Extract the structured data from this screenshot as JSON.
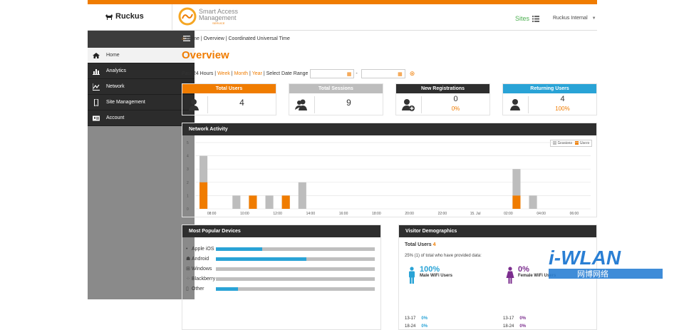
{
  "brand": {
    "ruckus": "Ruckus",
    "sam_line1": "Smart Access",
    "sam_line2": "Management",
    "sam_line3": "SERVICE"
  },
  "header": {
    "sites_label": "Sites",
    "user_label": "Ruckus Internal"
  },
  "sidebar": {
    "items": [
      {
        "label": "Home",
        "icon": "home-icon"
      },
      {
        "label": "Analytics",
        "icon": "bar-chart-icon"
      },
      {
        "label": "Network",
        "icon": "line-chart-icon"
      },
      {
        "label": "Site Management",
        "icon": "mobile-icon"
      },
      {
        "label": "Account",
        "icon": "id-card-icon"
      }
    ]
  },
  "breadcrumb": {
    "home": "Home",
    "overview": "Overview",
    "tz": "Coordinated Universal Time"
  },
  "page": {
    "title": "Overview"
  },
  "range": {
    "prefix": "Past 24 Hours",
    "week": "Week",
    "month": "Month",
    "year": "Year",
    "custom": "Select Date Range",
    "dash": "-"
  },
  "stats": [
    {
      "label": "Total Users",
      "value": "4",
      "sub": "",
      "color": "#f07c00"
    },
    {
      "label": "Total Sessions",
      "value": "9",
      "sub": "",
      "color": "#bdbdbd"
    },
    {
      "label": "New Registrations",
      "value": "0",
      "sub": "0%",
      "color": "#2e2e2e"
    },
    {
      "label": "Returning Users",
      "value": "4",
      "sub": "100%",
      "color": "#29a3d6"
    }
  ],
  "network": {
    "title": "Network Activity",
    "legend": {
      "sessions": "Sessions",
      "users": "Users"
    }
  },
  "chart_data": {
    "type": "bar",
    "title": "Network Activity",
    "ylim": [
      0,
      5
    ],
    "y_ticks": [
      "0",
      "1",
      "2",
      "3",
      "4",
      "5"
    ],
    "x_tick_labels": [
      "08:00",
      "10:00",
      "12:00",
      "14:00",
      "16:00",
      "18:00",
      "20:00",
      "22:00",
      "15. Jul",
      "02:00",
      "04:00",
      "06:00"
    ],
    "series": [
      {
        "name": "Sessions",
        "color": "#bdbdbd",
        "values": [
          4,
          1,
          1,
          1,
          1,
          2,
          3,
          1
        ]
      },
      {
        "name": "Users",
        "color": "#f07c00",
        "values": [
          2,
          0,
          1,
          0,
          1,
          0,
          1,
          0
        ]
      }
    ],
    "bar_slots": [
      0,
      2,
      3,
      4,
      5,
      6,
      19,
      20
    ],
    "grid": true,
    "legend_position": "top-right"
  },
  "devices": {
    "title": "Most Popular Devices",
    "items": [
      {
        "label": "Apple iOS",
        "icon": "apple-icon",
        "fraction": 0.29
      },
      {
        "label": "Android",
        "icon": "android-icon",
        "fraction": 0.57
      },
      {
        "label": "Windows",
        "icon": "windows-icon",
        "fraction": 0
      },
      {
        "label": "Blackberry",
        "icon": "blackberry-icon",
        "fraction": 0
      },
      {
        "label": "Other",
        "icon": "phone-icon",
        "fraction": 0.14
      }
    ]
  },
  "visitors": {
    "title": "Visitor Demographics",
    "total_label": "Total Users",
    "total_value": "4",
    "note": "25% (1) of total who have provided data:",
    "male": {
      "pct": "100%",
      "label": "Male WiFi Users",
      "color": "#29a3d6"
    },
    "female": {
      "pct": "0%",
      "label": "Female WiFi Users",
      "color": "#7b2d8e"
    },
    "male_ages": [
      {
        "range": "13-17",
        "pct": "0%"
      },
      {
        "range": "18-24",
        "pct": "0%"
      }
    ],
    "female_ages": [
      {
        "range": "13-17",
        "pct": "0%"
      },
      {
        "range": "18-24",
        "pct": "0%"
      }
    ]
  },
  "watermark": {
    "line1": "i-WLAN",
    "line2": "网博网络"
  }
}
